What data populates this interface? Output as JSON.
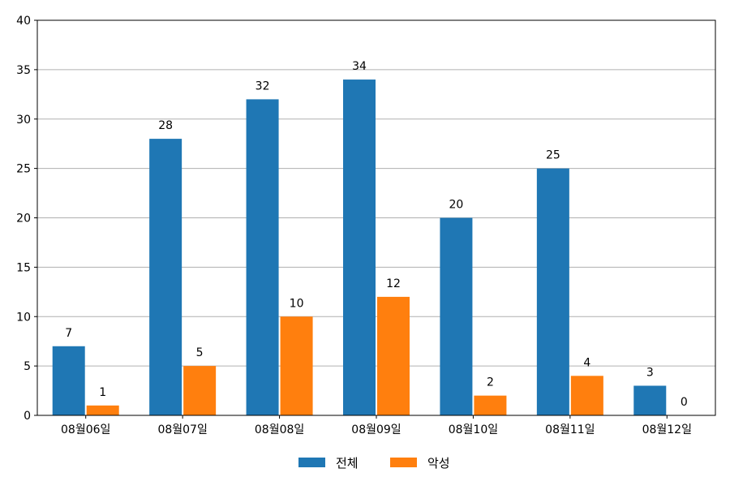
{
  "chart_data": {
    "type": "bar",
    "categories": [
      "08월06일",
      "08월07일",
      "08월08일",
      "08월09일",
      "08월10일",
      "08월11일",
      "08월12일"
    ],
    "series": [
      {
        "name": "전체",
        "values": [
          7,
          28,
          32,
          34,
          20,
          25,
          3
        ]
      },
      {
        "name": "악성",
        "values": [
          1,
          5,
          10,
          12,
          2,
          4,
          0
        ]
      }
    ],
    "ylim": [
      0,
      40
    ],
    "yticks": [
      0,
      5,
      10,
      15,
      20,
      25,
      30,
      35,
      40
    ],
    "grid": "horizontal",
    "legend_position": "bottom-center",
    "data_labels": true
  },
  "colors": {
    "series": [
      "#1f77b4",
      "#ff7f0e"
    ],
    "grid": "#b0b0b0",
    "axis": "#000000"
  }
}
